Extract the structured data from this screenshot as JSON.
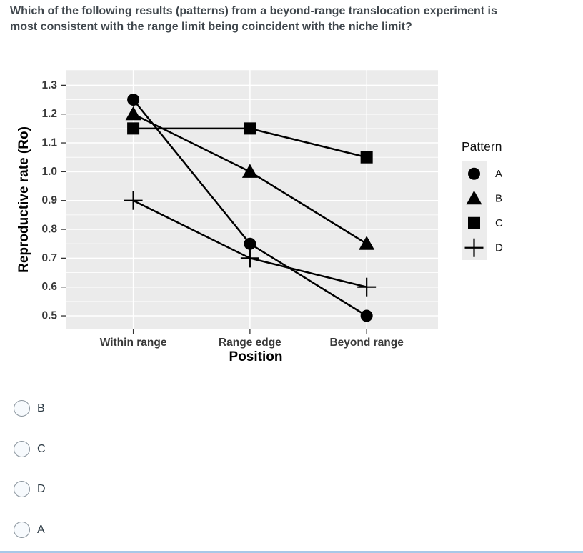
{
  "question": {
    "text": "Which of the following results (patterns) from a beyond-range translocation experiment is most consistent with the range limit being coincident with the niche limit?"
  },
  "chart_data": {
    "type": "line",
    "title": "",
    "xlabel": "Position",
    "ylabel": "Reproductive rate (Ro)",
    "categories": [
      "Within range",
      "Range edge",
      "Beyond range"
    ],
    "series": [
      {
        "name": "A",
        "marker": "circle",
        "values": [
          1.25,
          0.75,
          0.5
        ]
      },
      {
        "name": "B",
        "marker": "triangle",
        "values": [
          1.2,
          1.0,
          0.75
        ]
      },
      {
        "name": "C",
        "marker": "square",
        "values": [
          1.15,
          1.15,
          1.05
        ]
      },
      {
        "name": "D",
        "marker": "plus",
        "values": [
          0.9,
          0.7,
          0.6
        ]
      }
    ],
    "yticks": [
      0.5,
      0.6,
      0.7,
      0.8,
      0.9,
      1.0,
      1.1,
      1.2,
      1.3
    ],
    "ylim": [
      0.453,
      1.353
    ],
    "legend_title": "Pattern",
    "legend_position": "right",
    "grid": true,
    "panel_bg": "#EBEBEB",
    "grid_color": "#FFFFFF",
    "series_color": "#000000",
    "tick_label_color": "#3A3A3A",
    "axis_title_color": "#000000"
  },
  "options": [
    "B",
    "C",
    "D",
    "A"
  ],
  "colors": {
    "question_text": "#40474D",
    "option_text": "#2D3B45",
    "radio_fill": "#F7FAFD",
    "radio_border": "#8B959E",
    "bottom_divider": "#A8C8E8"
  }
}
